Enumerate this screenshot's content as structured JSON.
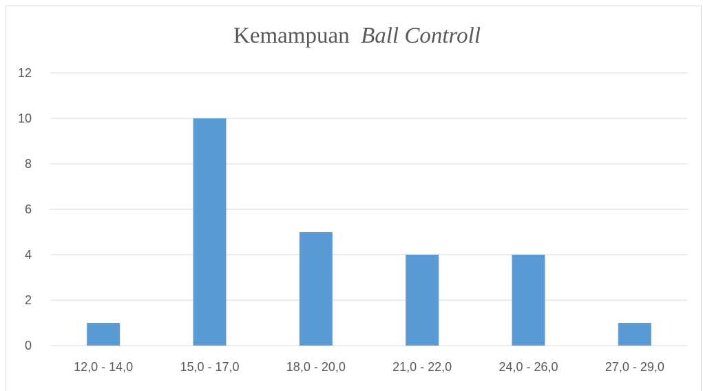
{
  "chart_data": {
    "type": "bar",
    "title": "Kemampuan",
    "title_italic": "Ball Controll",
    "categories": [
      "12,0 - 14,0",
      "15,0 - 17,0",
      "18,0 - 20,0",
      "21,0 - 22,0",
      "24,0 - 26,0",
      "27,0 - 29,0"
    ],
    "values": [
      1,
      10,
      5,
      4,
      4,
      1
    ],
    "ylim": [
      0,
      12
    ],
    "yticks": [
      "0",
      "2",
      "4",
      "6",
      "8",
      "10",
      "12"
    ],
    "grid": true,
    "legend": "none",
    "colors": {
      "bar": "#5b9bd5",
      "grid": "#d9d9d9",
      "text": "#595959"
    }
  }
}
